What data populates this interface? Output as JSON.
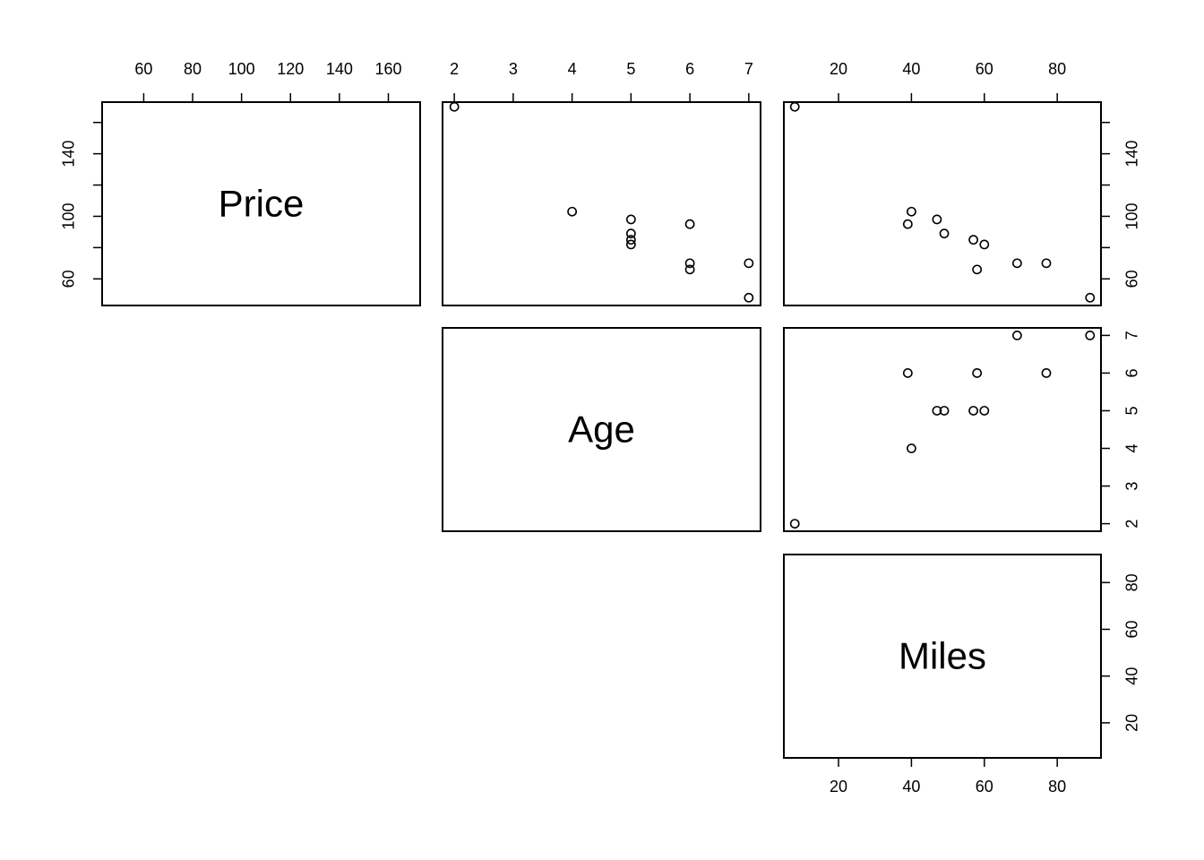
{
  "chart_data": {
    "type": "scatter",
    "variables": [
      "Price",
      "Age",
      "Miles"
    ],
    "axes": {
      "Price": {
        "range": [
          43,
          173
        ],
        "ticks": [
          60,
          80,
          100,
          120,
          140,
          160
        ],
        "tick_labels": [
          "60",
          "80",
          "100",
          "120",
          "140",
          "160"
        ]
      },
      "Age": {
        "range": [
          1.8,
          7.2
        ],
        "ticks": [
          2,
          3,
          4,
          5,
          6,
          7
        ],
        "tick_labels": [
          "2",
          "3",
          "4",
          "5",
          "6",
          "7"
        ]
      },
      "Miles": {
        "range": [
          5,
          92
        ],
        "ticks": [
          20,
          40,
          60,
          80
        ],
        "tick_labels": [
          "20",
          "40",
          "60",
          "80"
        ]
      }
    },
    "y_tick_labels": {
      "Price": [
        "60",
        "100",
        "140"
      ],
      "Age": [
        "2",
        "3",
        "4",
        "5",
        "6",
        "7"
      ],
      "Miles": [
        "20",
        "40",
        "60",
        "80"
      ]
    },
    "observations": [
      {
        "Price": 170,
        "Age": 2,
        "Miles": 8
      },
      {
        "Price": 103,
        "Age": 4,
        "Miles": 40
      },
      {
        "Price": 98,
        "Age": 5,
        "Miles": 47
      },
      {
        "Price": 89,
        "Age": 5,
        "Miles": 49
      },
      {
        "Price": 85,
        "Age": 5,
        "Miles": 57
      },
      {
        "Price": 82,
        "Age": 5,
        "Miles": 60
      },
      {
        "Price": 95,
        "Age": 6,
        "Miles": 39
      },
      {
        "Price": 70,
        "Age": 6,
        "Miles": 77
      },
      {
        "Price": 66,
        "Age": 6,
        "Miles": 58
      },
      {
        "Price": 70,
        "Age": 7,
        "Miles": 69
      },
      {
        "Price": 48,
        "Age": 7,
        "Miles": 89
      }
    ],
    "grid": false,
    "point_style": "open-circle"
  }
}
